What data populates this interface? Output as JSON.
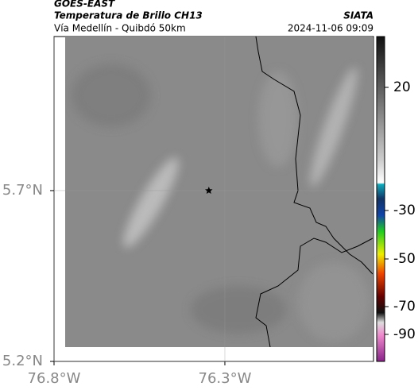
{
  "header": {
    "title": "GOES-EAST",
    "subtitle": "Temperatura de Brillo CH13",
    "route": "Vía Medellín - Quibdó 50km",
    "source": "SIATA",
    "datetime": "2024-11-06 09:09"
  },
  "map": {
    "xlim": [
      -76.8,
      -75.865
    ],
    "ylim": [
      5.2,
      6.151
    ],
    "xticks": [
      {
        "value": -76.8,
        "label": "76.8°W"
      },
      {
        "value": -76.3,
        "label": "76.3°W"
      }
    ],
    "yticks": [
      {
        "value": 5.7,
        "label": "5.7°N"
      },
      {
        "value": 5.2,
        "label": "5.2°N"
      }
    ],
    "marker": {
      "lon": -76.347,
      "lat": 5.7
    }
  },
  "colorbar": {
    "ticks": [
      20,
      -30,
      -50,
      -70,
      -90
    ]
  }
}
